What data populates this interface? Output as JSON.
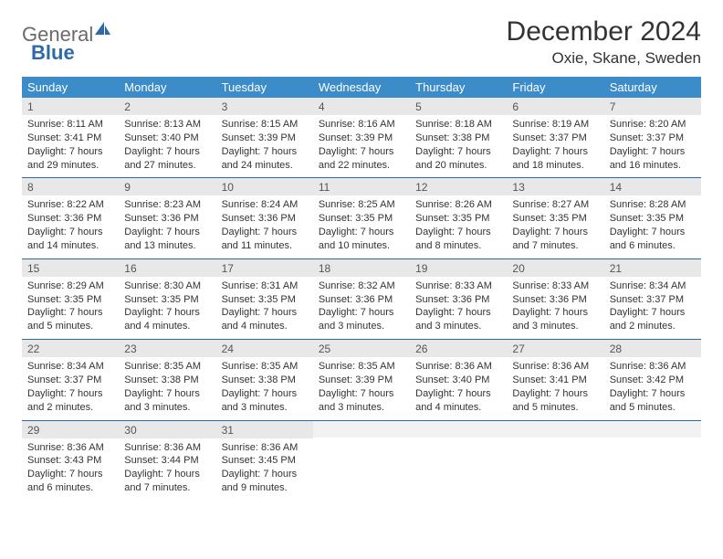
{
  "logo": {
    "word1": "General",
    "word2": "Blue"
  },
  "title": "December 2024",
  "location": "Oxie, Skane, Sweden",
  "colors": {
    "header_bg": "#3c8cc9",
    "week_divider": "#2d6aa8",
    "daynum_bg": "#e8e8e8",
    "logo_gray": "#6b6b6b",
    "logo_blue": "#2d6aa8"
  },
  "days_of_week": [
    "Sunday",
    "Monday",
    "Tuesday",
    "Wednesday",
    "Thursday",
    "Friday",
    "Saturday"
  ],
  "weeks": [
    [
      {
        "n": "1",
        "sr": "Sunrise: 8:11 AM",
        "ss": "Sunset: 3:41 PM",
        "d1": "Daylight: 7 hours",
        "d2": "and 29 minutes."
      },
      {
        "n": "2",
        "sr": "Sunrise: 8:13 AM",
        "ss": "Sunset: 3:40 PM",
        "d1": "Daylight: 7 hours",
        "d2": "and 27 minutes."
      },
      {
        "n": "3",
        "sr": "Sunrise: 8:15 AM",
        "ss": "Sunset: 3:39 PM",
        "d1": "Daylight: 7 hours",
        "d2": "and 24 minutes."
      },
      {
        "n": "4",
        "sr": "Sunrise: 8:16 AM",
        "ss": "Sunset: 3:39 PM",
        "d1": "Daylight: 7 hours",
        "d2": "and 22 minutes."
      },
      {
        "n": "5",
        "sr": "Sunrise: 8:18 AM",
        "ss": "Sunset: 3:38 PM",
        "d1": "Daylight: 7 hours",
        "d2": "and 20 minutes."
      },
      {
        "n": "6",
        "sr": "Sunrise: 8:19 AM",
        "ss": "Sunset: 3:37 PM",
        "d1": "Daylight: 7 hours",
        "d2": "and 18 minutes."
      },
      {
        "n": "7",
        "sr": "Sunrise: 8:20 AM",
        "ss": "Sunset: 3:37 PM",
        "d1": "Daylight: 7 hours",
        "d2": "and 16 minutes."
      }
    ],
    [
      {
        "n": "8",
        "sr": "Sunrise: 8:22 AM",
        "ss": "Sunset: 3:36 PM",
        "d1": "Daylight: 7 hours",
        "d2": "and 14 minutes."
      },
      {
        "n": "9",
        "sr": "Sunrise: 8:23 AM",
        "ss": "Sunset: 3:36 PM",
        "d1": "Daylight: 7 hours",
        "d2": "and 13 minutes."
      },
      {
        "n": "10",
        "sr": "Sunrise: 8:24 AM",
        "ss": "Sunset: 3:36 PM",
        "d1": "Daylight: 7 hours",
        "d2": "and 11 minutes."
      },
      {
        "n": "11",
        "sr": "Sunrise: 8:25 AM",
        "ss": "Sunset: 3:35 PM",
        "d1": "Daylight: 7 hours",
        "d2": "and 10 minutes."
      },
      {
        "n": "12",
        "sr": "Sunrise: 8:26 AM",
        "ss": "Sunset: 3:35 PM",
        "d1": "Daylight: 7 hours",
        "d2": "and 8 minutes."
      },
      {
        "n": "13",
        "sr": "Sunrise: 8:27 AM",
        "ss": "Sunset: 3:35 PM",
        "d1": "Daylight: 7 hours",
        "d2": "and 7 minutes."
      },
      {
        "n": "14",
        "sr": "Sunrise: 8:28 AM",
        "ss": "Sunset: 3:35 PM",
        "d1": "Daylight: 7 hours",
        "d2": "and 6 minutes."
      }
    ],
    [
      {
        "n": "15",
        "sr": "Sunrise: 8:29 AM",
        "ss": "Sunset: 3:35 PM",
        "d1": "Daylight: 7 hours",
        "d2": "and 5 minutes."
      },
      {
        "n": "16",
        "sr": "Sunrise: 8:30 AM",
        "ss": "Sunset: 3:35 PM",
        "d1": "Daylight: 7 hours",
        "d2": "and 4 minutes."
      },
      {
        "n": "17",
        "sr": "Sunrise: 8:31 AM",
        "ss": "Sunset: 3:35 PM",
        "d1": "Daylight: 7 hours",
        "d2": "and 4 minutes."
      },
      {
        "n": "18",
        "sr": "Sunrise: 8:32 AM",
        "ss": "Sunset: 3:36 PM",
        "d1": "Daylight: 7 hours",
        "d2": "and 3 minutes."
      },
      {
        "n": "19",
        "sr": "Sunrise: 8:33 AM",
        "ss": "Sunset: 3:36 PM",
        "d1": "Daylight: 7 hours",
        "d2": "and 3 minutes."
      },
      {
        "n": "20",
        "sr": "Sunrise: 8:33 AM",
        "ss": "Sunset: 3:36 PM",
        "d1": "Daylight: 7 hours",
        "d2": "and 3 minutes."
      },
      {
        "n": "21",
        "sr": "Sunrise: 8:34 AM",
        "ss": "Sunset: 3:37 PM",
        "d1": "Daylight: 7 hours",
        "d2": "and 2 minutes."
      }
    ],
    [
      {
        "n": "22",
        "sr": "Sunrise: 8:34 AM",
        "ss": "Sunset: 3:37 PM",
        "d1": "Daylight: 7 hours",
        "d2": "and 2 minutes."
      },
      {
        "n": "23",
        "sr": "Sunrise: 8:35 AM",
        "ss": "Sunset: 3:38 PM",
        "d1": "Daylight: 7 hours",
        "d2": "and 3 minutes."
      },
      {
        "n": "24",
        "sr": "Sunrise: 8:35 AM",
        "ss": "Sunset: 3:38 PM",
        "d1": "Daylight: 7 hours",
        "d2": "and 3 minutes."
      },
      {
        "n": "25",
        "sr": "Sunrise: 8:35 AM",
        "ss": "Sunset: 3:39 PM",
        "d1": "Daylight: 7 hours",
        "d2": "and 3 minutes."
      },
      {
        "n": "26",
        "sr": "Sunrise: 8:36 AM",
        "ss": "Sunset: 3:40 PM",
        "d1": "Daylight: 7 hours",
        "d2": "and 4 minutes."
      },
      {
        "n": "27",
        "sr": "Sunrise: 8:36 AM",
        "ss": "Sunset: 3:41 PM",
        "d1": "Daylight: 7 hours",
        "d2": "and 5 minutes."
      },
      {
        "n": "28",
        "sr": "Sunrise: 8:36 AM",
        "ss": "Sunset: 3:42 PM",
        "d1": "Daylight: 7 hours",
        "d2": "and 5 minutes."
      }
    ],
    [
      {
        "n": "29",
        "sr": "Sunrise: 8:36 AM",
        "ss": "Sunset: 3:43 PM",
        "d1": "Daylight: 7 hours",
        "d2": "and 6 minutes."
      },
      {
        "n": "30",
        "sr": "Sunrise: 8:36 AM",
        "ss": "Sunset: 3:44 PM",
        "d1": "Daylight: 7 hours",
        "d2": "and 7 minutes."
      },
      {
        "n": "31",
        "sr": "Sunrise: 8:36 AM",
        "ss": "Sunset: 3:45 PM",
        "d1": "Daylight: 7 hours",
        "d2": "and 9 minutes."
      },
      null,
      null,
      null,
      null
    ]
  ]
}
